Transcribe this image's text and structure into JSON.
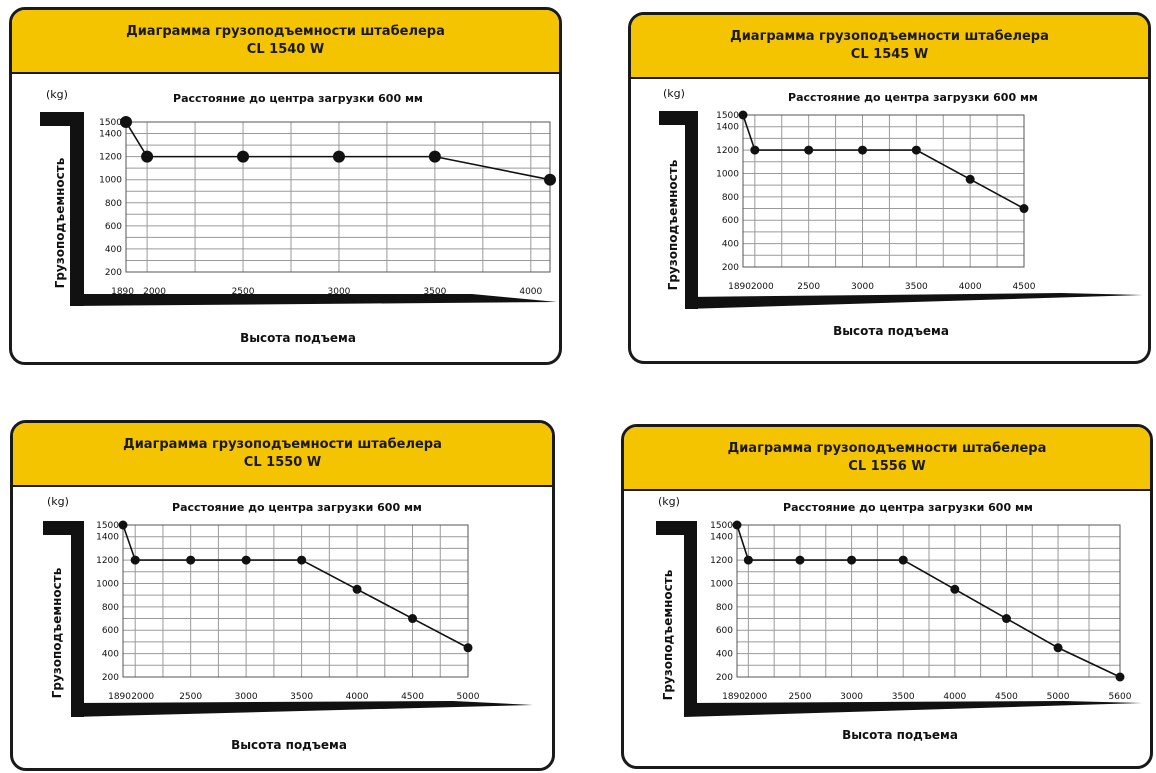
{
  "chart_data": [
    {
      "type": "line",
      "title": "Диаграмма грузоподъемности штабелера",
      "model": "CL 1540 W",
      "subtitle": "Расстояние до центра загрузки 600 мм",
      "xlabel": "Высота подъема",
      "ylabel": "Грузоподъемность",
      "unit": "(kg)",
      "y_ticks": [
        200,
        400,
        600,
        800,
        1000,
        1200,
        1400,
        1500
      ],
      "y_tick_labels": [
        "200",
        "400",
        "600",
        "800",
        "1000",
        "1200",
        "1400",
        "1500"
      ],
      "x_ticks": [
        1890,
        2000,
        2500,
        3000,
        3500,
        4000
      ],
      "x_tick_labels": [
        "1890",
        "2000",
        "2500",
        "3000",
        "3500",
        "4000"
      ],
      "xlim": [
        1890,
        4100
      ],
      "ylim": [
        200,
        1500
      ],
      "series": [
        {
          "x": [
            1890,
            2000,
            2500,
            3000,
            3500,
            4100
          ],
          "y": [
            1500,
            1200,
            1200,
            1200,
            1200,
            1000
          ]
        }
      ]
    },
    {
      "type": "line",
      "title": "Диаграмма грузоподъемности штабелера",
      "model": "CL 1545 W",
      "subtitle": "Расстояние до центра загрузки 600 мм",
      "xlabel": "Высота подъема",
      "ylabel": "Грузоподъемность",
      "unit": "(kg)",
      "y_ticks": [
        200,
        400,
        600,
        800,
        1000,
        1200,
        1400,
        1500
      ],
      "y_tick_labels": [
        "200",
        "400",
        "600",
        "800",
        "1000",
        "1200",
        "1400",
        "1500"
      ],
      "x_ticks": [
        1890,
        2000,
        2500,
        3000,
        3500,
        4000,
        4500
      ],
      "x_tick_labels": [
        "1890",
        "2000",
        "2500",
        "3000",
        "3500",
        "4000",
        "4500"
      ],
      "xlim": [
        1890,
        4500
      ],
      "ylim": [
        200,
        1500
      ],
      "series": [
        {
          "x": [
            1890,
            2000,
            2500,
            3000,
            3500,
            4000,
            4500
          ],
          "y": [
            1500,
            1200,
            1200,
            1200,
            1200,
            950,
            700
          ]
        }
      ]
    },
    {
      "type": "line",
      "title": "Диаграмма грузоподъемности штабелера",
      "model": "CL 1550 W",
      "subtitle": "Расстояние до центра загрузки 600 мм",
      "xlabel": "Высота подъема",
      "ylabel": "Грузоподъемность",
      "unit": "(kg)",
      "y_ticks": [
        200,
        400,
        600,
        800,
        1000,
        1200,
        1400,
        1500
      ],
      "y_tick_labels": [
        "200",
        "400",
        "600",
        "800",
        "1000",
        "1200",
        "1400",
        "1500"
      ],
      "x_ticks": [
        1890,
        2000,
        2500,
        3000,
        3500,
        4000,
        4500,
        5000
      ],
      "x_tick_labels": [
        "1890",
        "2000",
        "2500",
        "3000",
        "3500",
        "4000",
        "4500",
        "5000"
      ],
      "xlim": [
        1890,
        5000
      ],
      "ylim": [
        200,
        1500
      ],
      "series": [
        {
          "x": [
            1890,
            2000,
            2500,
            3000,
            3500,
            4000,
            4500,
            5000
          ],
          "y": [
            1500,
            1200,
            1200,
            1200,
            1200,
            950,
            700,
            450
          ]
        }
      ]
    },
    {
      "type": "line",
      "title": "Диаграмма грузоподъемности штабелера",
      "model": "CL 1556 W",
      "subtitle": "Расстояние до центра загрузки 600 мм",
      "xlabel": "Высота подъема",
      "ylabel": "Грузоподъемность",
      "unit": "(kg)",
      "y_ticks": [
        200,
        400,
        600,
        800,
        1000,
        1200,
        1400,
        1500
      ],
      "y_tick_labels": [
        "200",
        "400",
        "600",
        "800",
        "1000",
        "1200",
        "1400",
        "1500"
      ],
      "x_ticks": [
        1890,
        2000,
        2500,
        3000,
        3500,
        4000,
        4500,
        5000,
        5600
      ],
      "x_tick_labels": [
        "1890",
        "2000",
        "2500",
        "3000",
        "3500",
        "4000",
        "4500",
        "5000",
        "5600"
      ],
      "xlim": [
        1890,
        5600
      ],
      "ylim": [
        200,
        1500
      ],
      "series": [
        {
          "x": [
            1890,
            2000,
            2500,
            3000,
            3500,
            4000,
            4500,
            5000,
            5600
          ],
          "y": [
            1500,
            1200,
            1200,
            1200,
            1200,
            950,
            700,
            450,
            200
          ]
        }
      ]
    }
  ],
  "colors": {
    "header": "#f5c400",
    "ink": "#111111",
    "grid": "#9a9a9a"
  }
}
